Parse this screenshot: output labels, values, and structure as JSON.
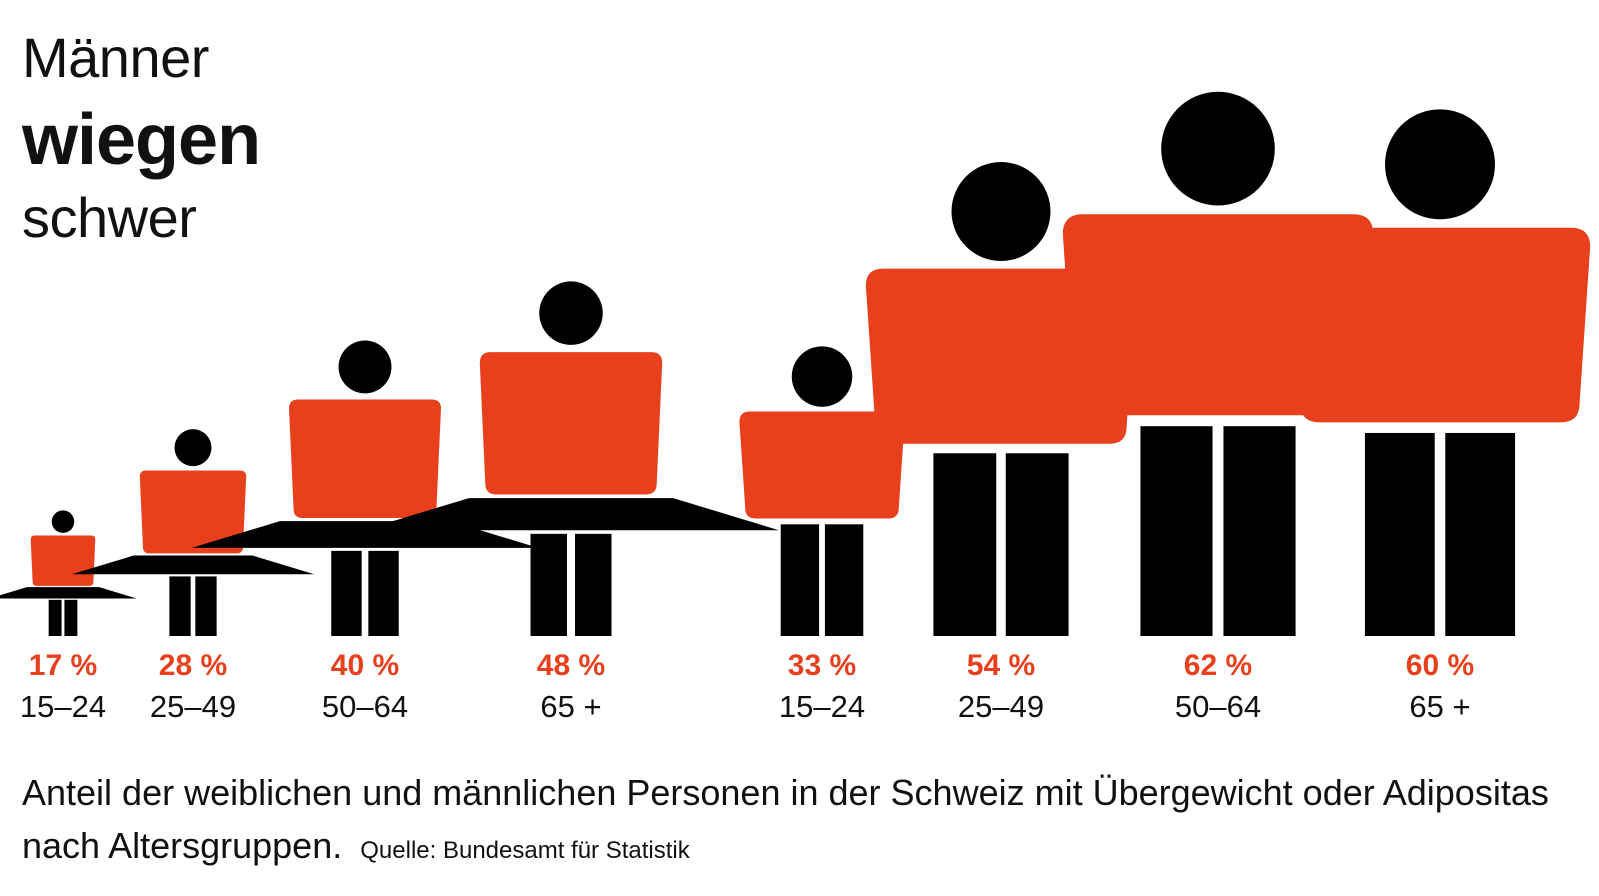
{
  "title": {
    "line1": "Männer",
    "line2": "wiegen",
    "line3": "schwer"
  },
  "caption": "Anteil der weiblichen und männlichen Personen in der Schweiz mit Übergewicht oder Adipositas nach Altersgruppen.",
  "source": "Quelle: Bundesamt für Statistik",
  "colors": {
    "accent": "#e8401c",
    "figure": "#000000",
    "text": "#111111"
  },
  "chart_data": {
    "type": "bar",
    "categories": [
      "15–24",
      "25–49",
      "50–64",
      "65 +",
      "15–24",
      "25–49",
      "50–64",
      "65 +"
    ],
    "series": [
      {
        "name": "",
        "values": [
          17,
          28,
          40,
          48,
          null,
          null,
          null,
          null
        ]
      },
      {
        "name": "",
        "values": [
          null,
          null,
          null,
          null,
          33,
          54,
          62,
          60
        ]
      }
    ],
    "figures": [
      {
        "group": "female",
        "age": "15–24",
        "value": 17,
        "label": "17 %"
      },
      {
        "group": "female",
        "age": "25–49",
        "value": 28,
        "label": "28 %"
      },
      {
        "group": "female",
        "age": "50–64",
        "value": 40,
        "label": "40 %"
      },
      {
        "group": "female",
        "age": "65 +",
        "value": 48,
        "label": "48 %"
      },
      {
        "group": "male",
        "age": "15–24",
        "value": 33,
        "label": "33 %"
      },
      {
        "group": "male",
        "age": "25–49",
        "value": 54,
        "label": "54 %"
      },
      {
        "group": "male",
        "age": "50–64",
        "value": 62,
        "label": "62 %"
      },
      {
        "group": "male",
        "age": "65 +",
        "value": 60,
        "label": "60 %"
      }
    ],
    "unit": "%"
  }
}
